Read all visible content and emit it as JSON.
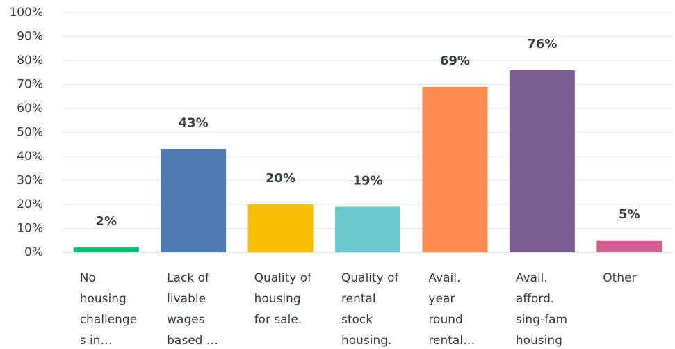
{
  "chart_data": {
    "type": "bar",
    "categories": [
      "No housing challenges in…",
      "Lack of livable wages based …",
      "Quality of housing for sale.",
      "Quality of rental stock housing.",
      "Avail. year round rental…",
      "Avail. afford. sing-fam housing",
      "Other"
    ],
    "values": [
      2,
      43,
      20,
      19,
      69,
      76,
      5
    ],
    "value_labels": [
      "2%",
      "43%",
      "20%",
      "19%",
      "69%",
      "76%",
      "5%"
    ],
    "colors": [
      "#00bf6f",
      "#507cb6",
      "#f9be00",
      "#6bc8cd",
      "#ff8b4f",
      "#7d5e90",
      "#d25f90"
    ],
    "ylim": [
      0,
      100
    ],
    "yticks": [
      {
        "value": 0,
        "label": "0%"
      },
      {
        "value": 10,
        "label": "10%"
      },
      {
        "value": 20,
        "label": "20%"
      },
      {
        "value": 30,
        "label": "30%"
      },
      {
        "value": 40,
        "label": "40%"
      },
      {
        "value": 50,
        "label": "50%"
      },
      {
        "value": 60,
        "label": "60%"
      },
      {
        "value": 70,
        "label": "70%"
      },
      {
        "value": 80,
        "label": "80%"
      },
      {
        "value": 90,
        "label": "90%"
      },
      {
        "value": 100,
        "label": "100%"
      }
    ],
    "grid": true
  }
}
